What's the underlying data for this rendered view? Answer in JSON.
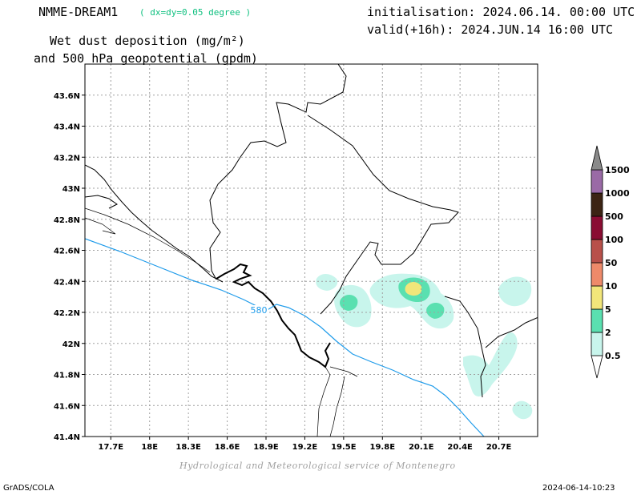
{
  "header": {
    "model": "NMME-DREAM1",
    "resolution": "( dx=dy=0.05 degree )",
    "variable_line1": "Wet dust deposition (mg/m²)",
    "variable_line2": "and 500 hPa geopotential (gpdm)",
    "initialisation": "initialisation: 2024.06.14. 00:00 UTC",
    "valid": "valid(+16h): 2024.JUN.14 16:00 UTC"
  },
  "map": {
    "lon_range": [
      17.5,
      21.0
    ],
    "lat_range": [
      41.4,
      43.8
    ],
    "x_ticks": [
      "17.7E",
      "18E",
      "18.3E",
      "18.6E",
      "18.9E",
      "19.2E",
      "19.5E",
      "19.8E",
      "20.1E",
      "20.4E",
      "20.7E"
    ],
    "y_ticks": [
      "41.4N",
      "41.6N",
      "41.8N",
      "42N",
      "42.2N",
      "42.4N",
      "42.6N",
      "42.8N",
      "43N",
      "43.2N",
      "43.4N",
      "43.6N"
    ],
    "grid": true,
    "contour_label": "580",
    "contour_color": "#1e9bea"
  },
  "colorbar": {
    "levels": [
      "0.5",
      "2",
      "5",
      "10",
      "50",
      "100",
      "500",
      "1000",
      "1500"
    ],
    "colors": [
      "#c8f5ec",
      "#5ae0b0",
      "#f2e67a",
      "#ee8a6a",
      "#b8504a",
      "#8a0d33",
      "#3c2414",
      "#9a6aa6",
      "#8a8a8a"
    ]
  },
  "footer": {
    "credit": "Hydrological and Meteorological service of Montenegro",
    "left": "GrADS/COLA",
    "right": "2024-06-14-10:23"
  }
}
